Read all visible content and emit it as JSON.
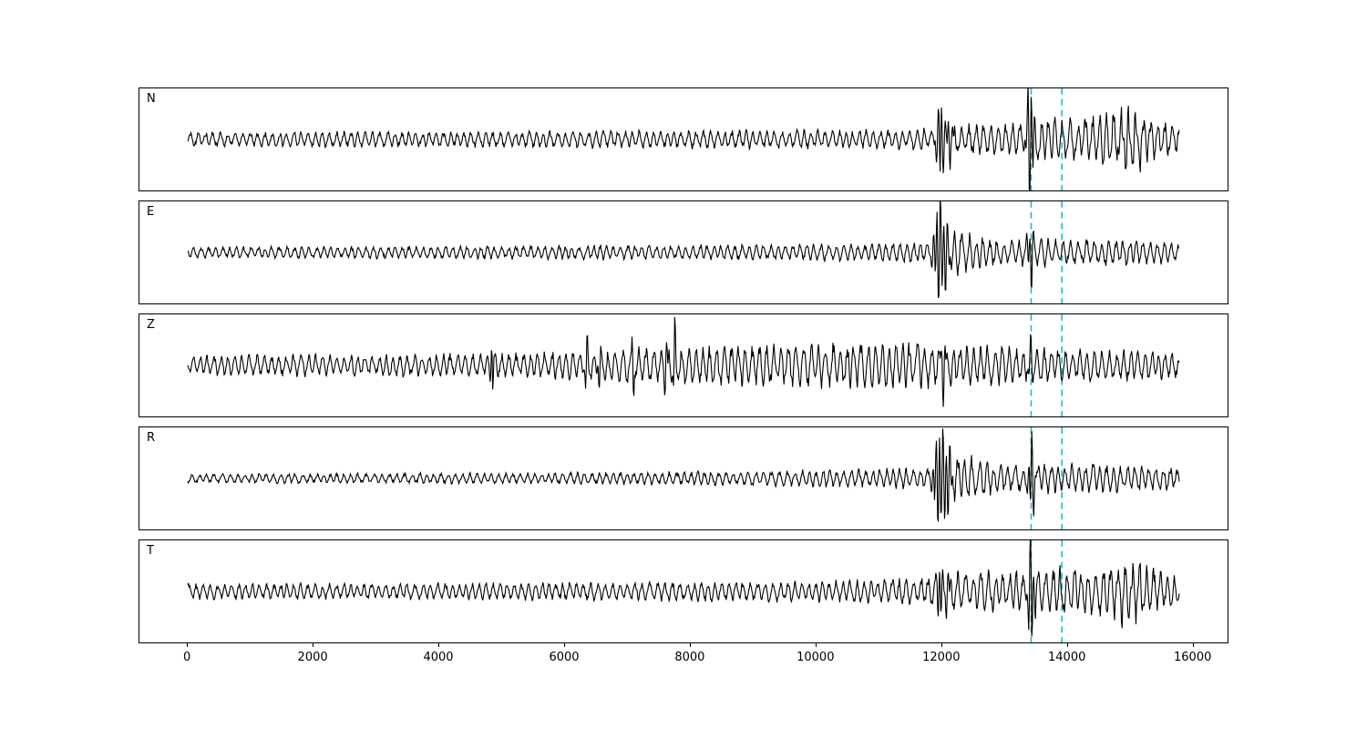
{
  "figure": {
    "background": "#ffffff",
    "colors": {
      "trace": "#000000",
      "pick_line": "#17becf",
      "panel_border": "#000000",
      "tick": "#000000"
    }
  },
  "chart_data": {
    "type": "line",
    "title": "",
    "xlabel": "",
    "ylabel": "",
    "grid": false,
    "legend": false,
    "x_axis_range": [
      -770,
      16570
    ],
    "x_data_range": [
      0,
      15800
    ],
    "x_ticks": [
      0,
      2000,
      4000,
      6000,
      8000,
      10000,
      12000,
      14000,
      16000
    ],
    "pick_lines": [
      13440,
      13930
    ],
    "pick_line_style": "dashed",
    "series": [
      {
        "name": "N",
        "envelope": [
          [
            0,
            6.5
          ],
          [
            4000,
            7
          ],
          [
            8000,
            8
          ],
          [
            11600,
            8.5
          ],
          [
            12150,
            14
          ],
          [
            12500,
            13
          ],
          [
            13300,
            14
          ],
          [
            13600,
            20
          ],
          [
            14200,
            18
          ],
          [
            14700,
            24
          ],
          [
            15100,
            26
          ],
          [
            15500,
            16
          ],
          [
            15800,
            12
          ]
        ],
        "spikes": [
          [
            11990,
            46,
            60
          ],
          [
            12120,
            20,
            70
          ],
          [
            13430,
            72,
            60
          ],
          [
            14950,
            12,
            180
          ],
          [
            15250,
            10,
            150
          ]
        ]
      },
      {
        "name": "E",
        "envelope": [
          [
            0,
            5
          ],
          [
            4000,
            5.5
          ],
          [
            7000,
            6.5
          ],
          [
            9000,
            7
          ],
          [
            11000,
            8
          ],
          [
            11700,
            9
          ],
          [
            12250,
            20
          ],
          [
            12600,
            14
          ],
          [
            13000,
            11
          ],
          [
            13350,
            12
          ],
          [
            13550,
            13
          ],
          [
            14000,
            11
          ],
          [
            15000,
            12
          ],
          [
            15800,
            9
          ]
        ],
        "spikes": [
          [
            11950,
            52,
            70
          ],
          [
            12060,
            44,
            80
          ],
          [
            13430,
            38,
            50
          ]
        ]
      },
      {
        "name": "Z",
        "envelope": [
          [
            0,
            9
          ],
          [
            2000,
            10
          ],
          [
            4000,
            10
          ],
          [
            5500,
            11
          ],
          [
            6000,
            13
          ],
          [
            8000,
            17
          ],
          [
            9000,
            19
          ],
          [
            10000,
            20
          ],
          [
            11000,
            21
          ],
          [
            12000,
            19
          ],
          [
            13000,
            17
          ],
          [
            14000,
            15
          ],
          [
            15000,
            14
          ],
          [
            15800,
            11
          ]
        ],
        "spikes": [
          [
            4850,
            44,
            25
          ],
          [
            6350,
            36,
            30
          ],
          [
            6560,
            32,
            30
          ],
          [
            7100,
            40,
            25
          ],
          [
            7620,
            28,
            30
          ],
          [
            7760,
            -48,
            25
          ],
          [
            12040,
            30,
            60
          ],
          [
            13430,
            22,
            50
          ]
        ]
      },
      {
        "name": "R",
        "envelope": [
          [
            0,
            4
          ],
          [
            3000,
            4.5
          ],
          [
            6000,
            5
          ],
          [
            8000,
            6
          ],
          [
            10000,
            7.5
          ],
          [
            11300,
            8.5
          ],
          [
            11800,
            10
          ],
          [
            12300,
            22
          ],
          [
            12700,
            16
          ],
          [
            13100,
            12
          ],
          [
            13600,
            14
          ],
          [
            14200,
            13
          ],
          [
            15000,
            12
          ],
          [
            15800,
            10
          ]
        ],
        "spikes": [
          [
            11960,
            54,
            80
          ],
          [
            12090,
            46,
            90
          ],
          [
            13450,
            52,
            45
          ]
        ]
      },
      {
        "name": "T",
        "envelope": [
          [
            0,
            7
          ],
          [
            4000,
            7.5
          ],
          [
            7000,
            8
          ],
          [
            9000,
            9
          ],
          [
            11000,
            10
          ],
          [
            11800,
            12
          ],
          [
            12200,
            18
          ],
          [
            12800,
            18
          ],
          [
            13300,
            16
          ],
          [
            13700,
            22
          ],
          [
            14300,
            20
          ],
          [
            14800,
            28
          ],
          [
            15200,
            26
          ],
          [
            15600,
            15
          ],
          [
            15800,
            12
          ]
        ],
        "spikes": [
          [
            11990,
            -44,
            50
          ],
          [
            12100,
            24,
            70
          ],
          [
            13440,
            70,
            55
          ],
          [
            15000,
            10,
            160
          ]
        ]
      }
    ]
  }
}
